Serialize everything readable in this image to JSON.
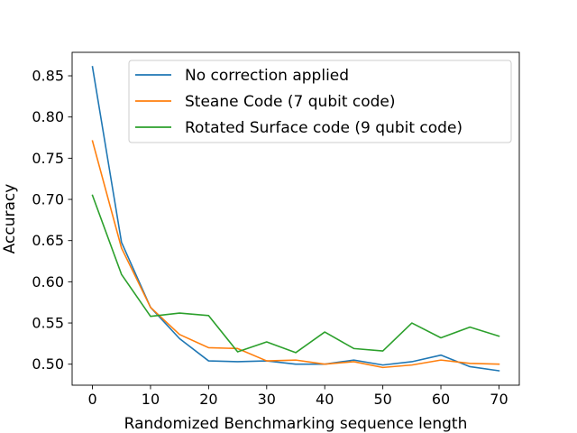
{
  "chart_data": {
    "type": "line",
    "title": "",
    "xlabel": "Randomized Benchmarking sequence length",
    "ylabel": "Accuracy",
    "x": [
      0,
      5,
      10,
      15,
      20,
      25,
      30,
      35,
      40,
      45,
      50,
      55,
      60,
      65,
      70
    ],
    "xlim": [
      -3.5,
      73.5
    ],
    "ylim": [
      0.4745,
      0.8785
    ],
    "xticks": [
      0,
      10,
      20,
      30,
      40,
      50,
      60,
      70
    ],
    "yticks": [
      0.5,
      0.55,
      0.6,
      0.65,
      0.7,
      0.75,
      0.8,
      0.85
    ],
    "xtick_labels": [
      "0",
      "10",
      "20",
      "30",
      "40",
      "50",
      "60",
      "70"
    ],
    "ytick_labels": [
      "0.50",
      "0.55",
      "0.60",
      "0.65",
      "0.70",
      "0.75",
      "0.80",
      "0.85"
    ],
    "grid": false,
    "legend_position": "top-right",
    "series": [
      {
        "name": "No correction applied",
        "color": "#1f77b4",
        "values": [
          0.861,
          0.648,
          0.569,
          0.531,
          0.504,
          0.503,
          0.504,
          0.5,
          0.5,
          0.505,
          0.499,
          0.503,
          0.511,
          0.497,
          0.492
        ]
      },
      {
        "name": "Steane Code (7 qubit code)",
        "color": "#ff7f0e",
        "values": [
          0.771,
          0.641,
          0.569,
          0.536,
          0.52,
          0.519,
          0.504,
          0.505,
          0.5,
          0.503,
          0.496,
          0.499,
          0.505,
          0.501,
          0.5
        ]
      },
      {
        "name": "Rotated Surface code (9 qubit code)",
        "color": "#2ca02c",
        "values": [
          0.705,
          0.609,
          0.558,
          0.562,
          0.559,
          0.515,
          0.527,
          0.514,
          0.539,
          0.519,
          0.516,
          0.55,
          0.532,
          0.545,
          0.534
        ]
      }
    ]
  }
}
